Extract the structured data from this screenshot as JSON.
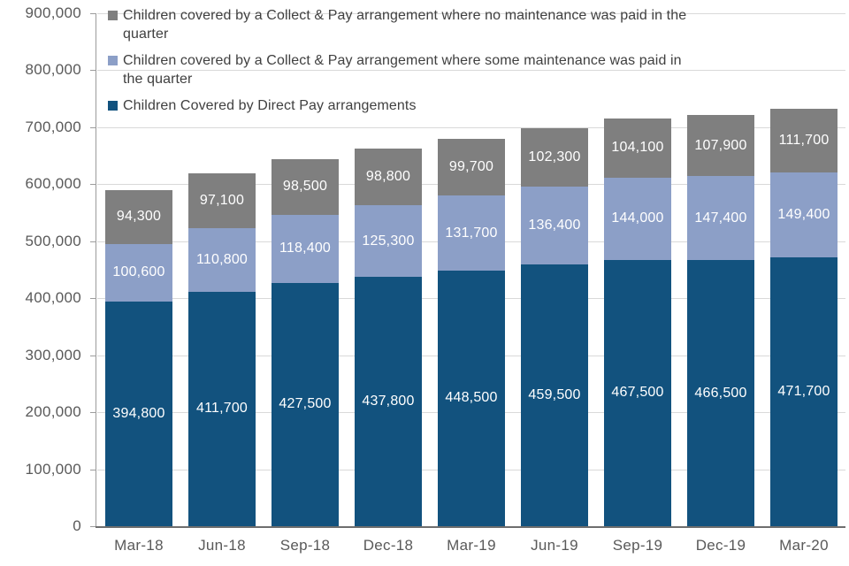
{
  "chart_data": {
    "type": "bar",
    "stacked": true,
    "categories": [
      "Mar-18",
      "Jun-18",
      "Sep-18",
      "Dec-18",
      "Mar-19",
      "Jun-19",
      "Sep-19",
      "Dec-19",
      "Mar-20"
    ],
    "series": [
      {
        "name": "Children Covered by Direct Pay arrangements",
        "color": "#12527e",
        "values": [
          394800,
          411700,
          427500,
          437800,
          448500,
          459500,
          467500,
          466500,
          471700
        ]
      },
      {
        "name": "Children covered by a Collect & Pay arrangement where some maintenance was paid in the quarter",
        "color": "#8c9fc7",
        "values": [
          100600,
          110800,
          118400,
          125300,
          131700,
          136400,
          144000,
          147400,
          149400
        ]
      },
      {
        "name": "Children covered by a Collect & Pay arrangement where no maintenance was paid in the quarter",
        "color": "#7f7f7f",
        "values": [
          94300,
          97100,
          98500,
          98800,
          99700,
          102300,
          104100,
          107900,
          111700
        ]
      }
    ],
    "legend": {
      "position": "top-left-inside",
      "order_top_to_bottom": [
        2,
        1,
        0
      ]
    },
    "y_axis": {
      "min": 0,
      "max": 900000,
      "step": 100000,
      "tick_labels": [
        "0",
        "100,000",
        "200,000",
        "300,000",
        "400,000",
        "500,000",
        "600,000",
        "700,000",
        "800,000",
        "900,000"
      ]
    },
    "gridlines": true,
    "data_labels": "inside-center-white",
    "style": {
      "grid_color": "#d9d9d9",
      "axis_line_color": "#9c9c9c",
      "baseline_color": "#6e6e6e",
      "tick_label_color": "#595959",
      "legend_text_color": "#404040",
      "bar_label_color": "#ffffff"
    }
  }
}
